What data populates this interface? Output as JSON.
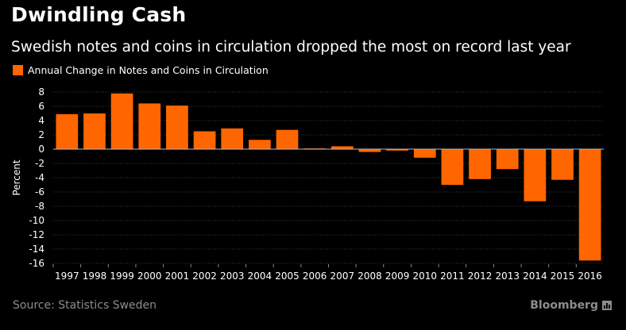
{
  "header": {
    "title": "Dwindling Cash",
    "subtitle": "Swedish notes and coins in circulation dropped the most on record last year"
  },
  "footer": {
    "source": "Source: Statistics Sweden",
    "brand": "Bloomberg",
    "brand_icon": "bloomberg-chart-icon"
  },
  "colors": {
    "background": "#000000",
    "bar": "#ff6600",
    "grid": "#3a3a3a",
    "zero_line": "#bbbbbb",
    "source_text": "#8c8c8c"
  },
  "chart_data": {
    "type": "bar",
    "title": "Dwindling Cash",
    "subtitle": "Swedish notes and coins in circulation dropped the most on record last year",
    "xlabel": "",
    "ylabel": "Percent",
    "ylim": [
      -16,
      8
    ],
    "yticks": [
      8,
      6,
      4,
      2,
      0,
      -2,
      -4,
      -6,
      -8,
      -10,
      -12,
      -14,
      -16
    ],
    "grid": true,
    "legend_position": "top-left",
    "categories": [
      "1997",
      "1998",
      "1999",
      "2000",
      "2001",
      "2002",
      "2003",
      "2004",
      "2005",
      "2006",
      "2007",
      "2008",
      "2009",
      "2010",
      "2011",
      "2012",
      "2013",
      "2014",
      "2015",
      "2016"
    ],
    "series": [
      {
        "name": "Annual Change in Notes and Coins in Circulation",
        "color": "#ff6600",
        "values": [
          4.9,
          5.0,
          7.8,
          6.4,
          6.1,
          2.5,
          2.9,
          1.3,
          2.7,
          0.1,
          0.4,
          -0.4,
          -0.2,
          -1.2,
          -5.0,
          -4.2,
          -2.8,
          -7.3,
          -4.3,
          -15.6
        ]
      }
    ]
  }
}
